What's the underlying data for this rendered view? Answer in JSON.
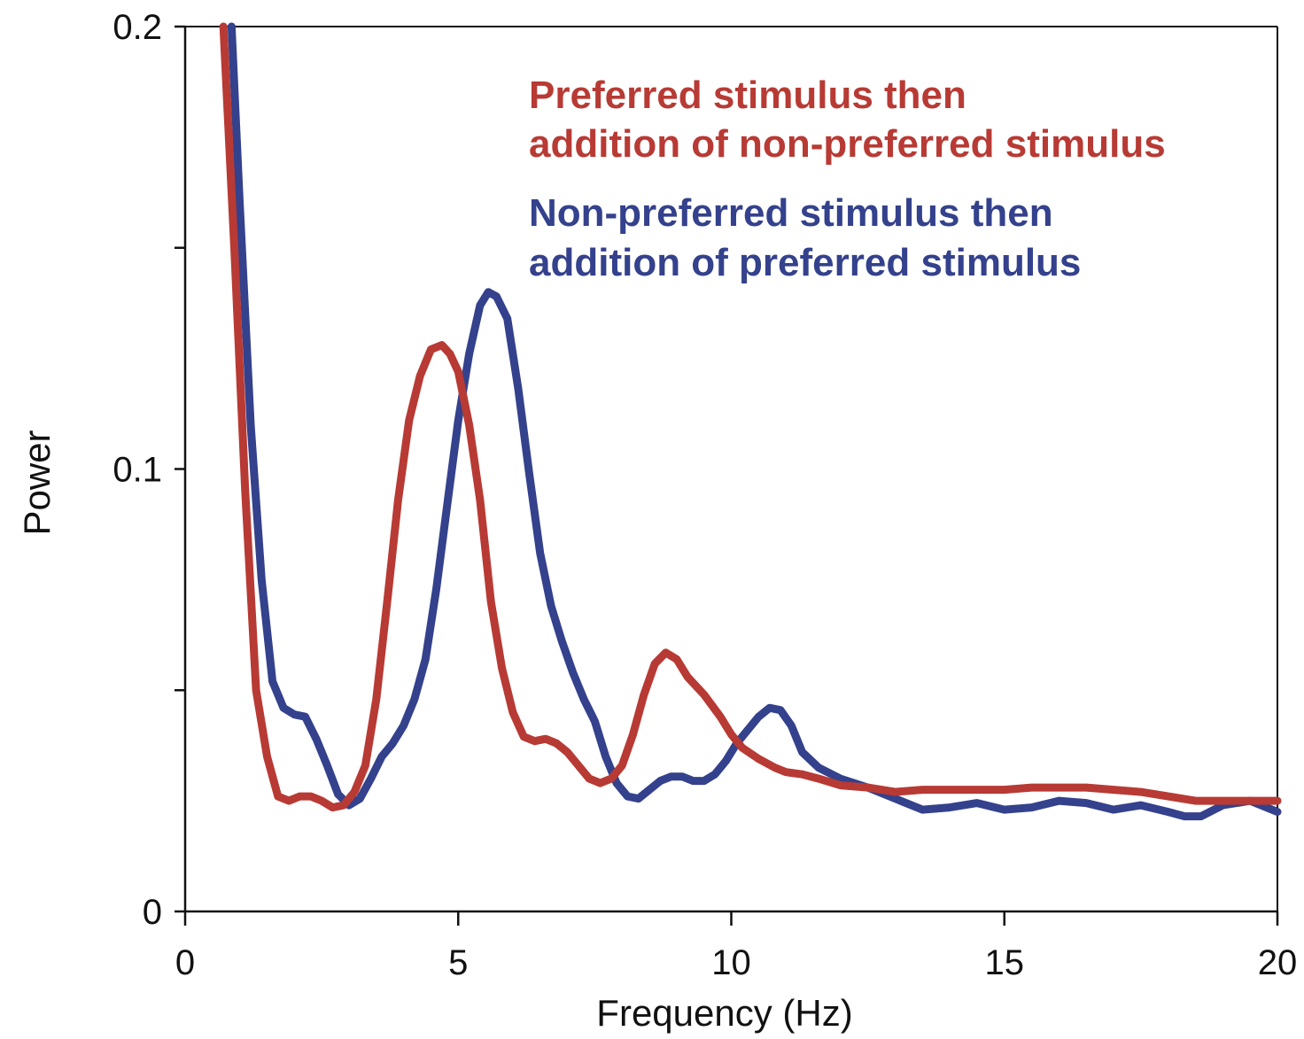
{
  "chart_data": {
    "type": "line",
    "title": "",
    "xlabel": "Frequency (Hz)",
    "ylabel": "Power",
    "xlim": [
      0,
      20
    ],
    "ylim": [
      0,
      0.2
    ],
    "xticks": [
      0,
      5,
      10,
      15,
      20
    ],
    "xtick_labels": [
      "0",
      "5",
      "10",
      "15",
      "20"
    ],
    "yticks": [
      0,
      0.05,
      0.1,
      0.15,
      0.2
    ],
    "ytick_labels": [
      "0",
      "",
      "0.1",
      "",
      "0.2"
    ],
    "grid": false,
    "legend_placement": "top-right",
    "series": [
      {
        "name": "Preferred stimulus then addition of non-preferred stimulus",
        "legend_lines": [
          "Preferred stimulus then",
          "addition of non-preferred stimulus"
        ],
        "color": "#b83a34",
        "x": [
          0.7,
          0.9,
          1.1,
          1.3,
          1.5,
          1.7,
          1.9,
          2.1,
          2.3,
          2.5,
          2.7,
          2.9,
          3.1,
          3.3,
          3.5,
          3.7,
          3.9,
          4.1,
          4.3,
          4.5,
          4.7,
          4.85,
          5.0,
          5.2,
          5.4,
          5.6,
          5.8,
          6.0,
          6.2,
          6.4,
          6.6,
          6.8,
          7.0,
          7.2,
          7.4,
          7.6,
          7.8,
          8.0,
          8.2,
          8.4,
          8.6,
          8.8,
          9.0,
          9.2,
          9.5,
          9.8,
          10.0,
          10.2,
          10.5,
          10.8,
          11.0,
          11.3,
          11.6,
          12.0,
          12.5,
          13.0,
          13.5,
          14.0,
          14.5,
          15.0,
          15.5,
          16.0,
          16.5,
          17.0,
          17.5,
          18.0,
          18.5,
          19.0,
          19.5,
          20.0
        ],
        "values": [
          0.2,
          0.15,
          0.095,
          0.05,
          0.035,
          0.026,
          0.025,
          0.026,
          0.026,
          0.025,
          0.0235,
          0.024,
          0.027,
          0.033,
          0.048,
          0.07,
          0.093,
          0.111,
          0.121,
          0.127,
          0.128,
          0.126,
          0.122,
          0.11,
          0.093,
          0.07,
          0.055,
          0.045,
          0.0395,
          0.0385,
          0.039,
          0.038,
          0.036,
          0.033,
          0.03,
          0.029,
          0.03,
          0.033,
          0.04,
          0.049,
          0.056,
          0.0585,
          0.057,
          0.053,
          0.049,
          0.044,
          0.04,
          0.037,
          0.0345,
          0.0325,
          0.0315,
          0.031,
          0.03,
          0.0285,
          0.028,
          0.027,
          0.0275,
          0.0275,
          0.0275,
          0.0275,
          0.028,
          0.028,
          0.028,
          0.0275,
          0.027,
          0.026,
          0.025,
          0.025,
          0.025,
          0.025
        ]
      },
      {
        "name": "Non-preferred stimulus then addition of preferred stimulus",
        "legend_lines": [
          "Non-preferred stimulus then",
          "addition of preferred stimulus"
        ],
        "color": "#34418c",
        "x": [
          0.85,
          1.0,
          1.2,
          1.4,
          1.6,
          1.8,
          2.0,
          2.2,
          2.4,
          2.6,
          2.8,
          3.0,
          3.2,
          3.4,
          3.6,
          3.8,
          4.0,
          4.2,
          4.4,
          4.6,
          4.8,
          5.0,
          5.2,
          5.4,
          5.55,
          5.7,
          5.9,
          6.1,
          6.3,
          6.5,
          6.7,
          6.9,
          7.1,
          7.3,
          7.5,
          7.7,
          7.9,
          8.1,
          8.3,
          8.5,
          8.7,
          8.9,
          9.1,
          9.3,
          9.5,
          9.7,
          9.9,
          10.1,
          10.3,
          10.5,
          10.7,
          10.9,
          11.1,
          11.3,
          11.6,
          12.0,
          12.5,
          13.0,
          13.5,
          14.0,
          14.5,
          15.0,
          15.5,
          16.0,
          16.5,
          17.0,
          17.5,
          18.0,
          18.3,
          18.6,
          19.0,
          19.5,
          20.0
        ],
        "values": [
          0.2,
          0.16,
          0.11,
          0.075,
          0.052,
          0.046,
          0.0445,
          0.044,
          0.039,
          0.033,
          0.0265,
          0.024,
          0.0255,
          0.03,
          0.035,
          0.038,
          0.042,
          0.048,
          0.057,
          0.073,
          0.092,
          0.111,
          0.126,
          0.137,
          0.14,
          0.139,
          0.134,
          0.118,
          0.099,
          0.081,
          0.069,
          0.061,
          0.054,
          0.048,
          0.043,
          0.035,
          0.029,
          0.026,
          0.0255,
          0.0275,
          0.0295,
          0.0305,
          0.0305,
          0.0295,
          0.0295,
          0.031,
          0.034,
          0.038,
          0.041,
          0.044,
          0.046,
          0.0455,
          0.042,
          0.036,
          0.0325,
          0.03,
          0.028,
          0.0255,
          0.023,
          0.0235,
          0.0245,
          0.023,
          0.0235,
          0.025,
          0.0245,
          0.023,
          0.024,
          0.0225,
          0.0215,
          0.0215,
          0.024,
          0.025,
          0.0225
        ]
      }
    ]
  }
}
